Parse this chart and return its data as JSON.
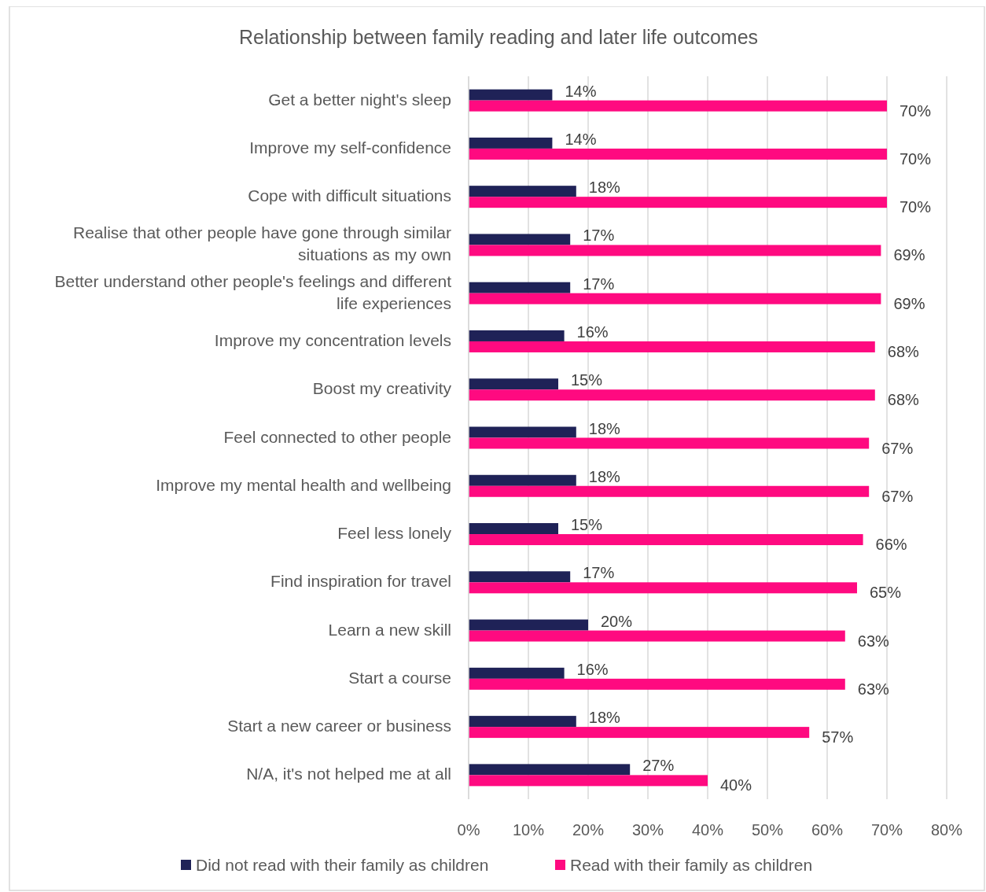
{
  "chart_data": {
    "type": "bar",
    "orientation": "horizontal",
    "title": "Relationship between family reading and later life outcomes",
    "categories": [
      "Get a better night's sleep",
      "Improve my self-confidence",
      "Cope with difficult situations",
      "Realise that other people have gone through similar situations as my own",
      "Better understand other people's feelings and different life experiences",
      "Improve my concentration levels",
      "Boost my creativity",
      "Feel connected to other people",
      "Improve my mental health and wellbeing",
      "Feel less lonely",
      "Find inspiration for travel",
      "Learn a new skill",
      "Start a course",
      "Start a new career or business",
      "N/A, it's not helped me at all"
    ],
    "series": [
      {
        "name": "Did not read with their family as children",
        "color": "#1f2257",
        "values": [
          14,
          14,
          18,
          17,
          17,
          16,
          15,
          18,
          18,
          15,
          17,
          20,
          16,
          18,
          27
        ],
        "value_labels": [
          "14%",
          "14%",
          "18%",
          "17%",
          "17%",
          "16%",
          "15%",
          "18%",
          "18%",
          "15%",
          "17%",
          "20%",
          "16%",
          "18%",
          "27%"
        ]
      },
      {
        "name": "Read with their family as children",
        "color": "#ff0a80",
        "values": [
          70,
          70,
          70,
          69,
          69,
          68,
          68,
          67,
          67,
          66,
          65,
          63,
          63,
          57,
          40
        ],
        "value_labels": [
          "70%",
          "70%",
          "70%",
          "69%",
          "69%",
          "68%",
          "68%",
          "67%",
          "67%",
          "66%",
          "65%",
          "63%",
          "63%",
          "57%",
          "40%"
        ]
      }
    ],
    "xlim": [
      0,
      80
    ],
    "xticks": [
      {
        "value": 0,
        "label": "0%"
      },
      {
        "value": 10,
        "label": "10%"
      },
      {
        "value": 20,
        "label": "20%"
      },
      {
        "value": 30,
        "label": "30%"
      },
      {
        "value": 40,
        "label": "40%"
      },
      {
        "value": 50,
        "label": "50%"
      },
      {
        "value": 60,
        "label": "60%"
      },
      {
        "value": 70,
        "label": "70%"
      },
      {
        "value": 80,
        "label": "80%"
      }
    ],
    "grid": "x",
    "legend": "bottom"
  }
}
